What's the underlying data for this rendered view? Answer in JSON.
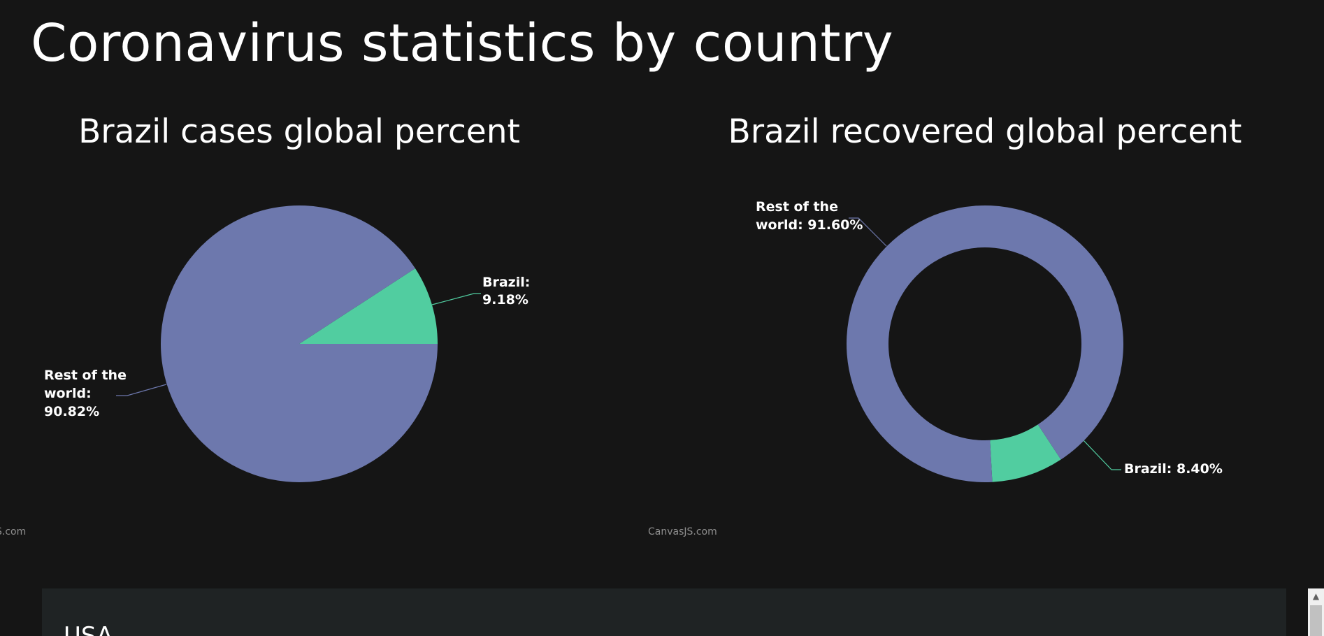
{
  "page": {
    "title": "Coronavirus statistics by country"
  },
  "chart_data": [
    {
      "type": "pie",
      "title": "Brazil cases global percent",
      "series": [
        {
          "name": "Brazil",
          "value": 9.18,
          "color": "#51cda0"
        },
        {
          "name": "Rest of the world",
          "value": 90.82,
          "color": "#6d78ad"
        }
      ],
      "labels": [
        "Brazil: 9.18%",
        "Rest of the world: 90.82%"
      ]
    },
    {
      "type": "doughnut",
      "title": "Brazil recovered global percent",
      "series": [
        {
          "name": "Brazil",
          "value": 8.4,
          "color": "#51cda0"
        },
        {
          "name": "Rest of the world",
          "value": 91.6,
          "color": "#6d78ad"
        }
      ],
      "labels": [
        "Brazil: 8.40%",
        "Rest of the world: 91.60%"
      ]
    }
  ],
  "credits": {
    "left": "S.com",
    "middle": "CanvasJS.com"
  },
  "next_section": {
    "country": "USA"
  },
  "colors": {
    "background": "#151515",
    "card": "#1f2324",
    "brazil": "#51cda0",
    "rest": "#6d78ad"
  },
  "icons": {
    "scroll_up": "scroll-up-arrow-icon"
  }
}
